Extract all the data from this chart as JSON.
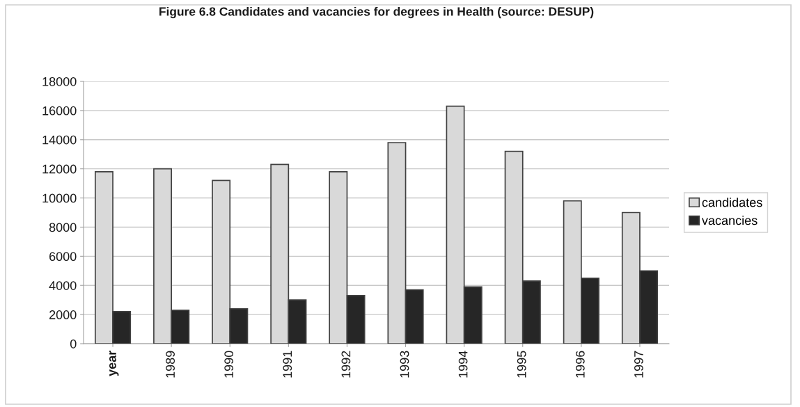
{
  "chart_data": {
    "type": "bar",
    "title": "Figure 6.8 Candidates and vacancies for degrees in Health (source: DESUP)",
    "categories": [
      "year",
      "1989",
      "1990",
      "1991",
      "1992",
      "1993",
      "1994",
      "1995",
      "1996",
      "1997"
    ],
    "series": [
      {
        "name": "candidates",
        "color": "#d9d9d9",
        "values": [
          11800,
          12000,
          11200,
          12300,
          11800,
          13800,
          16300,
          13200,
          9800,
          9000
        ]
      },
      {
        "name": "vacancies",
        "color": "#262626",
        "values": [
          2200,
          2300,
          2400,
          3000,
          3300,
          3700,
          3900,
          4300,
          4500,
          5000
        ]
      }
    ],
    "ylim": [
      0,
      18000
    ],
    "yticks": [
      0,
      2000,
      4000,
      6000,
      8000,
      10000,
      12000,
      14000,
      16000,
      18000
    ],
    "grid": "y",
    "legend": "right"
  }
}
